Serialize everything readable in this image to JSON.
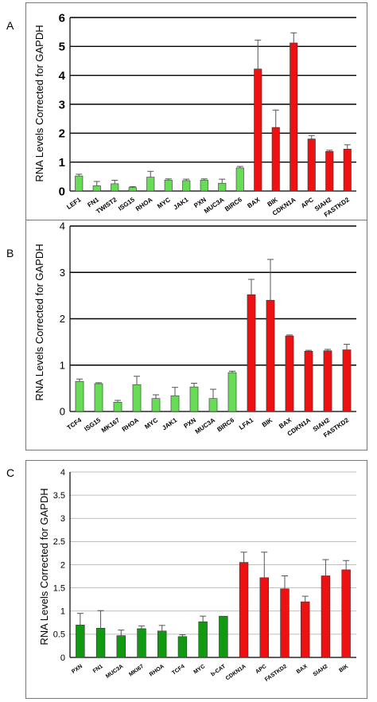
{
  "chart_data": [
    {
      "panel": "A",
      "type": "bar",
      "ylabel": "RNA Levels Corrected for GAPDH",
      "ylim": [
        0,
        6
      ],
      "yticks": [
        "0",
        "1",
        "2",
        "3",
        "4",
        "5",
        "6"
      ],
      "grid": true,
      "categories": [
        "LEF1",
        "FN1",
        "TWIST2",
        "ISG15",
        "RHOA",
        "MYC",
        "JAK1",
        "PXN",
        "MUC3A",
        "BIRC6",
        "BAX",
        "BIK",
        "CDKN1A",
        "APC",
        "SIAH2",
        "FASTKD2"
      ],
      "values": [
        0.52,
        0.18,
        0.25,
        0.12,
        0.48,
        0.38,
        0.36,
        0.38,
        0.27,
        0.8,
        4.22,
        2.2,
        5.12,
        1.8,
        1.37,
        1.45
      ],
      "errors": [
        0.06,
        0.15,
        0.12,
        0.03,
        0.2,
        0.04,
        0.05,
        0.04,
        0.14,
        0.05,
        1.0,
        0.6,
        0.35,
        0.12,
        0.04,
        0.15
      ],
      "colors": [
        "#66dd55",
        "#66dd55",
        "#66dd55",
        "#66dd55",
        "#66dd55",
        "#66dd55",
        "#66dd55",
        "#66dd55",
        "#66dd55",
        "#66dd55",
        "#ee1111",
        "#ee1111",
        "#ee1111",
        "#ee1111",
        "#ee1111",
        "#ee1111"
      ]
    },
    {
      "panel": "B",
      "type": "bar",
      "ylabel": "RNA Levels Corrected for GAPDH",
      "ylim": [
        0,
        4
      ],
      "yticks": [
        "0",
        "1",
        "2",
        "3",
        "4"
      ],
      "grid": true,
      "categories": [
        "TCF4",
        "ISG15",
        "MK167",
        "RHOA",
        "MYC",
        "JAK1",
        "PXN",
        "MUC3A",
        "BIRC6",
        "LFA1",
        "BIK",
        "BAX",
        "CDKN1A",
        "SIAH2",
        "FASTKD2"
      ],
      "values": [
        0.65,
        0.6,
        0.2,
        0.58,
        0.28,
        0.34,
        0.53,
        0.28,
        0.84,
        2.52,
        2.4,
        1.63,
        1.3,
        1.31,
        1.33
      ],
      "errors": [
        0.05,
        0.02,
        0.04,
        0.18,
        0.08,
        0.18,
        0.08,
        0.2,
        0.03,
        0.33,
        0.88,
        0.02,
        0.02,
        0.03,
        0.12
      ],
      "colors": [
        "#66dd55",
        "#66dd55",
        "#66dd55",
        "#66dd55",
        "#66dd55",
        "#66dd55",
        "#66dd55",
        "#66dd55",
        "#66dd55",
        "#ee1111",
        "#ee1111",
        "#ee1111",
        "#ee1111",
        "#ee1111",
        "#ee1111"
      ]
    },
    {
      "panel": "C",
      "type": "bar",
      "ylabel": "RNA Levels Corrected for GAPDH",
      "ylim": [
        0,
        4
      ],
      "yticks": [
        "0",
        "0.5",
        "1",
        "1.5",
        "2",
        "2.5",
        "3",
        "3.5",
        "4"
      ],
      "grid": true,
      "categories": [
        "PXN",
        "FN1",
        "MUC3A",
        "MKI67",
        "RHOA",
        "TCF4",
        "MYC",
        "b-CAT",
        "CDKN1A",
        "APC",
        "FASTKD2",
        "BAX",
        "SIAH2",
        "BIK"
      ],
      "values": [
        0.7,
        0.63,
        0.47,
        0.62,
        0.57,
        0.45,
        0.77,
        0.89,
        2.05,
        1.72,
        1.48,
        1.2,
        1.76,
        1.89
      ],
      "errors": [
        0.25,
        0.38,
        0.12,
        0.06,
        0.12,
        0.04,
        0.12,
        0.0,
        0.22,
        0.55,
        0.28,
        0.12,
        0.35,
        0.2
      ],
      "colors": [
        "#119911",
        "#119911",
        "#119911",
        "#119911",
        "#119911",
        "#119911",
        "#119911",
        "#119911",
        "#ee1111",
        "#ee1111",
        "#ee1111",
        "#ee1111",
        "#ee1111",
        "#ee1111"
      ]
    }
  ]
}
